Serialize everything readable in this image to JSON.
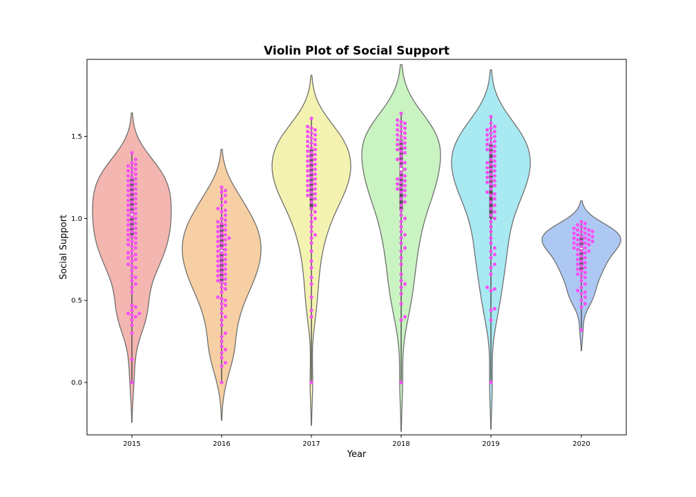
{
  "chart_data": {
    "type": "violin",
    "title": "Violin Plot of Social Support",
    "xlabel": "Year",
    "ylabel": "Social Support",
    "categories": [
      "2015",
      "2016",
      "2017",
      "2018",
      "2019",
      "2020"
    ],
    "ylim": [
      -0.32,
      1.97
    ],
    "yticks": [
      0.0,
      0.5,
      1.0,
      1.5
    ],
    "ytick_labels": [
      "0.0",
      "0.5",
      "1.0",
      "1.5"
    ],
    "grid": false,
    "legend": "none",
    "colors": {
      "violins": [
        "#f4b6b0",
        "#f7cfa4",
        "#f4f2b0",
        "#c9f3c1",
        "#a9e9f2",
        "#aec8f4"
      ],
      "points": "#f552f5",
      "violin_edge": "#6e6e6e",
      "box": "#555555"
    },
    "series": [
      {
        "category": "2015",
        "min": 0.0,
        "q1": 0.88,
        "median": 1.02,
        "q3": 1.24,
        "max": 1.4,
        "points": [
          0.0,
          0.14,
          0.3,
          0.35,
          0.38,
          0.4,
          0.41,
          0.42,
          0.42,
          0.44,
          0.46,
          0.47,
          0.55,
          0.58,
          0.6,
          0.62,
          0.64,
          0.65,
          0.68,
          0.7,
          0.71,
          0.72,
          0.74,
          0.75,
          0.76,
          0.77,
          0.78,
          0.79,
          0.8,
          0.82,
          0.83,
          0.84,
          0.85,
          0.86,
          0.87,
          0.88,
          0.89,
          0.9,
          0.91,
          0.92,
          0.93,
          0.94,
          0.95,
          0.96,
          0.97,
          0.98,
          0.99,
          1.0,
          1.01,
          1.02,
          1.03,
          1.04,
          1.05,
          1.06,
          1.07,
          1.08,
          1.09,
          1.1,
          1.11,
          1.12,
          1.13,
          1.14,
          1.15,
          1.16,
          1.17,
          1.18,
          1.19,
          1.2,
          1.21,
          1.22,
          1.23,
          1.24,
          1.25,
          1.26,
          1.27,
          1.28,
          1.29,
          1.3,
          1.31,
          1.32,
          1.33,
          1.34,
          1.36,
          1.4
        ]
      },
      {
        "category": "2016",
        "min": 0.0,
        "q1": 0.6,
        "median": 0.8,
        "q3": 0.97,
        "max": 1.19,
        "points": [
          0.0,
          0.1,
          0.12,
          0.15,
          0.18,
          0.2,
          0.22,
          0.25,
          0.28,
          0.3,
          0.35,
          0.38,
          0.4,
          0.42,
          0.45,
          0.47,
          0.48,
          0.5,
          0.51,
          0.52,
          0.55,
          0.57,
          0.58,
          0.6,
          0.61,
          0.62,
          0.63,
          0.64,
          0.65,
          0.66,
          0.67,
          0.68,
          0.69,
          0.7,
          0.71,
          0.72,
          0.73,
          0.74,
          0.75,
          0.76,
          0.77,
          0.78,
          0.79,
          0.8,
          0.81,
          0.82,
          0.83,
          0.84,
          0.85,
          0.86,
          0.87,
          0.88,
          0.88,
          0.89,
          0.9,
          0.91,
          0.92,
          0.93,
          0.94,
          0.95,
          0.96,
          0.97,
          0.98,
          0.99,
          1.0,
          1.02,
          1.04,
          1.05,
          1.06,
          1.08,
          1.1,
          1.12,
          1.14,
          1.16,
          1.17,
          1.19
        ]
      },
      {
        "category": "2017",
        "min": 0.0,
        "q1": 1.05,
        "median": 1.28,
        "q3": 1.42,
        "max": 1.61,
        "points": [
          0.0,
          0.4,
          0.44,
          0.52,
          0.6,
          0.64,
          0.7,
          0.74,
          0.8,
          0.85,
          0.88,
          0.9,
          0.92,
          0.95,
          0.98,
          1.0,
          1.02,
          1.04,
          1.06,
          1.08,
          1.1,
          1.12,
          1.13,
          1.14,
          1.15,
          1.16,
          1.17,
          1.18,
          1.19,
          1.2,
          1.21,
          1.22,
          1.23,
          1.24,
          1.25,
          1.26,
          1.27,
          1.28,
          1.29,
          1.3,
          1.31,
          1.32,
          1.33,
          1.34,
          1.35,
          1.36,
          1.37,
          1.38,
          1.39,
          1.4,
          1.41,
          1.42,
          1.43,
          1.44,
          1.45,
          1.46,
          1.47,
          1.48,
          1.49,
          1.5,
          1.51,
          1.52,
          1.53,
          1.54,
          1.55,
          1.56,
          1.61
        ]
      },
      {
        "category": "2018",
        "min": 0.0,
        "q1": 1.05,
        "median": 1.3,
        "q3": 1.48,
        "max": 1.64,
        "points": [
          0.0,
          0.38,
          0.4,
          0.48,
          0.54,
          0.58,
          0.6,
          0.62,
          0.66,
          0.72,
          0.76,
          0.8,
          0.82,
          0.85,
          0.88,
          0.9,
          0.92,
          0.95,
          0.98,
          1.0,
          1.02,
          1.05,
          1.08,
          1.1,
          1.12,
          1.14,
          1.16,
          1.17,
          1.18,
          1.19,
          1.2,
          1.21,
          1.22,
          1.23,
          1.24,
          1.25,
          1.26,
          1.28,
          1.3,
          1.32,
          1.34,
          1.35,
          1.36,
          1.38,
          1.4,
          1.41,
          1.42,
          1.43,
          1.44,
          1.45,
          1.46,
          1.47,
          1.48,
          1.49,
          1.5,
          1.51,
          1.52,
          1.53,
          1.54,
          1.55,
          1.56,
          1.57,
          1.58,
          1.59,
          1.6,
          1.64
        ]
      },
      {
        "category": "2019",
        "min": 0.0,
        "q1": 1.0,
        "median": 1.24,
        "q3": 1.45,
        "max": 1.62,
        "points": [
          0.0,
          0.38,
          0.44,
          0.45,
          0.56,
          0.57,
          0.58,
          0.66,
          0.7,
          0.72,
          0.76,
          0.78,
          0.8,
          0.82,
          0.85,
          0.88,
          0.92,
          0.95,
          0.98,
          1.0,
          1.02,
          1.04,
          1.06,
          1.08,
          1.1,
          1.12,
          1.14,
          1.15,
          1.16,
          1.18,
          1.2,
          1.21,
          1.22,
          1.23,
          1.24,
          1.25,
          1.26,
          1.27,
          1.28,
          1.29,
          1.3,
          1.31,
          1.32,
          1.33,
          1.34,
          1.35,
          1.36,
          1.38,
          1.4,
          1.41,
          1.42,
          1.43,
          1.44,
          1.45,
          1.46,
          1.47,
          1.48,
          1.49,
          1.5,
          1.51,
          1.52,
          1.53,
          1.54,
          1.55,
          1.56,
          1.58,
          1.62
        ]
      },
      {
        "category": "2020",
        "min": 0.32,
        "q1": 0.68,
        "median": 0.82,
        "q3": 0.9,
        "max": 0.98,
        "points": [
          0.32,
          0.46,
          0.48,
          0.5,
          0.52,
          0.54,
          0.55,
          0.56,
          0.58,
          0.6,
          0.62,
          0.64,
          0.65,
          0.66,
          0.67,
          0.68,
          0.69,
          0.7,
          0.71,
          0.72,
          0.73,
          0.74,
          0.75,
          0.76,
          0.77,
          0.78,
          0.79,
          0.8,
          0.8,
          0.81,
          0.82,
          0.82,
          0.83,
          0.84,
          0.84,
          0.85,
          0.85,
          0.86,
          0.86,
          0.87,
          0.87,
          0.88,
          0.88,
          0.89,
          0.89,
          0.9,
          0.9,
          0.91,
          0.91,
          0.92,
          0.92,
          0.93,
          0.93,
          0.94,
          0.94,
          0.95,
          0.96,
          0.97,
          0.98
        ]
      }
    ]
  }
}
